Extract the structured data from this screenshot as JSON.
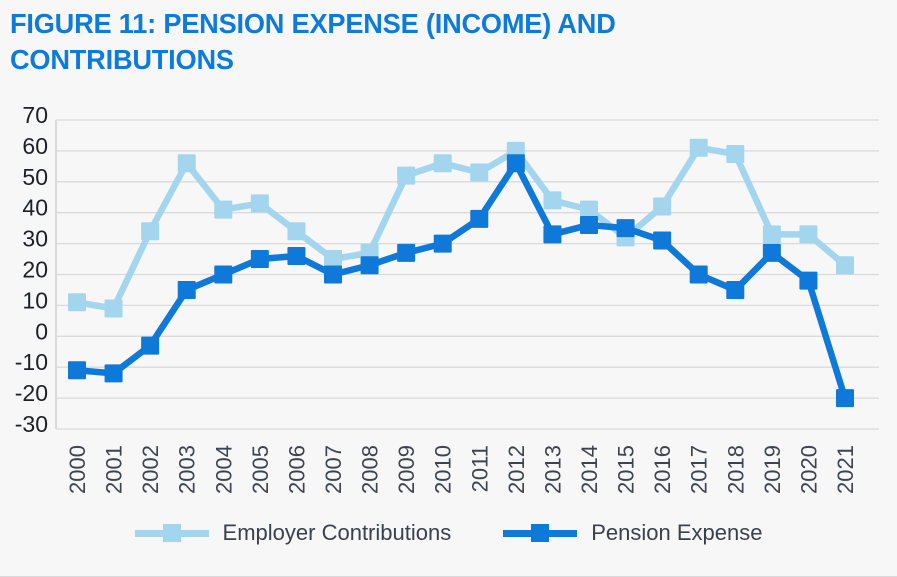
{
  "page": {
    "background_color": "#f7f7f8"
  },
  "chart_data": {
    "type": "line",
    "title": "FIGURE 11: PENSION EXPENSE (INCOME) AND CONTRIBUTIONS",
    "title_color": "#0c7bdb",
    "categories": [
      "2000",
      "2001",
      "2002",
      "2003",
      "2004",
      "2005",
      "2006",
      "2007",
      "2008",
      "2009",
      "2010",
      "2011",
      "2012",
      "2013",
      "2014",
      "2015",
      "2016",
      "2017",
      "2018",
      "2019",
      "2020",
      "2021"
    ],
    "series": [
      {
        "name": "Employer Contributions",
        "color": "#a3d6ee",
        "values": [
          11,
          9,
          34,
          56,
          41,
          43,
          34,
          25,
          27,
          52,
          56,
          53,
          60,
          44,
          41,
          32,
          42,
          61,
          59,
          33,
          33,
          23
        ]
      },
      {
        "name": "Pension Expense",
        "color": "#0e79d8",
        "values": [
          -11,
          -12,
          -3,
          15,
          20,
          25,
          26,
          20,
          23,
          27,
          30,
          38,
          56,
          33,
          36,
          35,
          31,
          20,
          15,
          27,
          18,
          -20
        ]
      }
    ],
    "ylim": [
      -30,
      70
    ],
    "ytick_step": 10,
    "grid": true,
    "gridline_color": "#d9dadc",
    "axis_line_color": "#c9cbce",
    "ytick_label_color": "#1d2025",
    "xtick_label_color": "#3b4450",
    "legend_position": "bottom",
    "legend_text_color": "#39414f",
    "xlabel": "",
    "ylabel": ""
  }
}
